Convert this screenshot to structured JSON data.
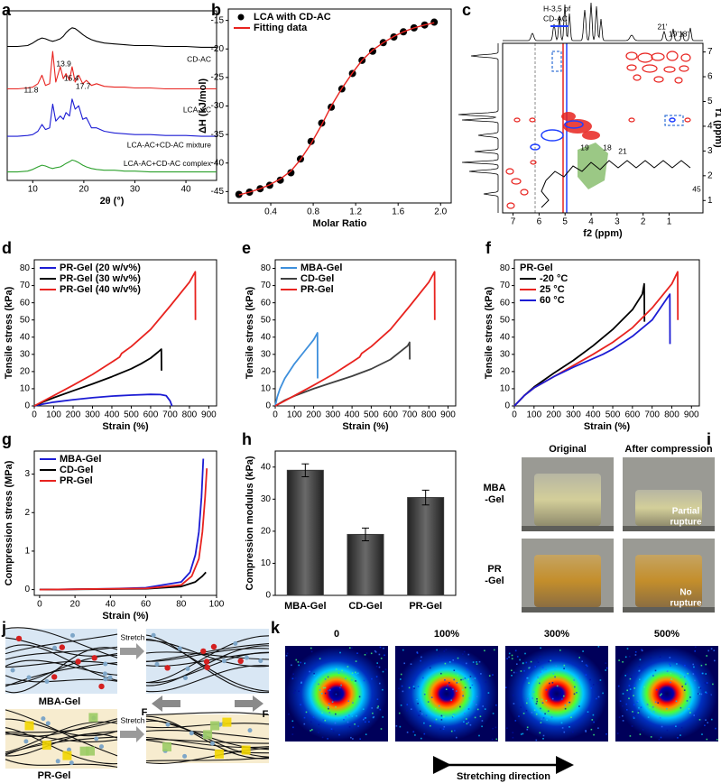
{
  "chart_data": [
    {
      "panel": "a",
      "type": "line",
      "x_label": "2θ (°)",
      "xlim": [
        5,
        46
      ],
      "xticks": [
        10,
        20,
        30,
        40
      ],
      "ylim": [
        0,
        100
      ],
      "x": [
        5,
        7,
        9,
        10,
        11,
        11.8,
        12.5,
        13.3,
        13.9,
        14.5,
        15.4,
        16,
        16.5,
        17.2,
        17.7,
        18.3,
        19,
        19.8,
        20.5,
        21.5,
        22.5,
        24,
        26,
        28,
        30,
        33,
        36,
        40,
        43,
        46
      ],
      "series": [
        {
          "name": "CD-AC",
          "color": "#000000",
          "values": [
            79,
            79,
            79.5,
            81,
            83,
            84,
            83.5,
            82.5,
            82,
            82.5,
            83.5,
            85,
            87,
            89,
            90,
            89.5,
            88,
            86,
            84.5,
            83,
            82,
            81,
            80.5,
            80,
            79.5,
            79.5,
            79,
            79,
            78.5,
            78.5
          ]
        },
        {
          "name": "LCA-AC",
          "color": "#e8231f",
          "values": [
            54,
            54,
            54.5,
            55,
            57,
            62,
            56,
            57,
            76,
            58,
            67,
            60,
            63,
            59,
            67,
            58,
            62,
            57,
            59,
            56,
            57,
            55.5,
            55,
            55,
            54.5,
            54.5,
            54,
            54,
            54,
            54
          ]
        },
        {
          "name": "LCA-AC+CD-AC mixture",
          "color": "#1c1cd4",
          "values": [
            26,
            26,
            26.5,
            27,
            29,
            33,
            30,
            31,
            45,
            35,
            38,
            36,
            40,
            38,
            48,
            42,
            44,
            36,
            37,
            31,
            31,
            29,
            28,
            27.5,
            27,
            27,
            26.5,
            26.5,
            26,
            26
          ]
        },
        {
          "name": "LCA-AC+CD-AC complex",
          "color": "#2ca02c",
          "values": [
            5,
            5,
            5.5,
            6.5,
            8,
            9,
            8.5,
            7.5,
            7,
            7.5,
            8,
            9,
            10,
            11,
            12,
            11.5,
            10.5,
            9,
            8,
            7,
            6.5,
            6,
            6,
            5.5,
            5.5,
            5,
            5,
            5,
            5,
            5
          ]
        }
      ],
      "peak_labels": [
        11.8,
        13.9,
        15.4,
        17.7
      ]
    },
    {
      "panel": "b",
      "type": "scatter",
      "x_label": "Molar Ratio",
      "y_label": "ΔH (kJ/mol)",
      "xlim": [
        0,
        2.1
      ],
      "xticks": [
        0.4,
        0.8,
        1.2,
        1.6,
        {
          "value": 2,
          "label": "2.0"
        }
      ],
      "ylim": [
        -47,
        -13
      ],
      "yticks": [
        -45,
        -40,
        -35,
        -30,
        -25,
        -20,
        -15
      ],
      "legend": "upper left",
      "series": [
        {
          "name": "LCA with CD-AC",
          "color": "#000000",
          "style": "points",
          "x": [
            0.1,
            0.2,
            0.3,
            0.39,
            0.49,
            0.59,
            0.68,
            0.78,
            0.88,
            0.97,
            1.07,
            1.17,
            1.26,
            1.36,
            1.46,
            1.56,
            1.65,
            1.75,
            1.85,
            1.94
          ],
          "values": [
            -45.5,
            -45.1,
            -44.5,
            -43.9,
            -43,
            -41.7,
            -39.3,
            -36.2,
            -33,
            -30.2,
            -27,
            -24.3,
            -22,
            -20.4,
            -18.9,
            -17.9,
            -17,
            -16.3,
            -15.8,
            -15.3
          ]
        },
        {
          "name": "Fitting data",
          "color": "#e8231f",
          "style": "line",
          "x": [
            0.1,
            0.2,
            0.3,
            0.39,
            0.49,
            0.59,
            0.68,
            0.78,
            0.88,
            0.97,
            1.07,
            1.17,
            1.26,
            1.36,
            1.46,
            1.56,
            1.65,
            1.75,
            1.85,
            1.94
          ],
          "values": [
            -45.6,
            -45.1,
            -44.5,
            -43.8,
            -42.8,
            -41.4,
            -39.4,
            -36.6,
            -33.3,
            -30,
            -26.9,
            -24.2,
            -22,
            -20.2,
            -18.9,
            -17.8,
            -17,
            -16.3,
            -15.8,
            -15.4
          ]
        }
      ]
    },
    {
      "panel": "c",
      "type": "nmr2d",
      "x_label": "f2 (ppm)",
      "y_label": "f1 (ppm)",
      "xlim": [
        7.4,
        -0.3
      ],
      "xticks": [
        7,
        6,
        5,
        4,
        3,
        2,
        1
      ],
      "ylim": [
        0.5,
        7.35
      ],
      "yticks": [
        1,
        2,
        3,
        4,
        5,
        6,
        7
      ],
      "annotations": [
        "H-3,5 of",
        "CD-AC",
        "21'",
        "19'18'"
      ],
      "structure_labels": [
        "19",
        "18",
        "21",
        "45"
      ]
    },
    {
      "panel": "d",
      "type": "line",
      "x_label": "Strain (%)",
      "y_label": "Tensile stress (kPa)",
      "xlim": [
        0,
        940
      ],
      "xticks": [
        0,
        100,
        200,
        300,
        400,
        500,
        600,
        700,
        800,
        900
      ],
      "ylim": [
        0,
        85
      ],
      "yticks": [
        0,
        10,
        20,
        30,
        40,
        50,
        60,
        70,
        80
      ],
      "legend": "upper left",
      "series": [
        {
          "name": "PR-Gel (20 w/v%)",
          "color": "#1c1cd4",
          "x": [
            0,
            50,
            100,
            200,
            300,
            400,
            500,
            600,
            650,
            680,
            700,
            710
          ],
          "values": [
            0,
            1.2,
            2.2,
            3.6,
            4.8,
            5.7,
            6.3,
            6.7,
            6.6,
            6,
            3,
            0
          ]
        },
        {
          "name": "PR-Gel (30 w/v%)",
          "color": "#000000",
          "x": [
            0,
            50,
            100,
            200,
            300,
            400,
            450,
            500,
            550,
            600,
            640,
            655,
            656
          ],
          "values": [
            0,
            2.5,
            4.8,
            8.8,
            12.8,
            17,
            19.3,
            21.6,
            24.5,
            27.8,
            31.5,
            33,
            20.5
          ]
        },
        {
          "name": "PR-Gel (40 w/v%)",
          "color": "#e8231f",
          "x": [
            0,
            50,
            100,
            200,
            300,
            400,
            440,
            450,
            500,
            600,
            700,
            800,
            830,
            831
          ],
          "values": [
            0,
            3,
            6,
            12,
            18.3,
            25.5,
            28.5,
            30.5,
            34.5,
            44.5,
            58,
            72,
            78,
            50
          ]
        }
      ]
    },
    {
      "panel": "e",
      "type": "line",
      "x_label": "Strain (%)",
      "y_label": "Tensile stress (kPa)",
      "xlim": [
        0,
        940
      ],
      "xticks": [
        0,
        100,
        200,
        300,
        400,
        500,
        600,
        700,
        800,
        900
      ],
      "ylim": [
        0,
        85
      ],
      "yticks": [
        0,
        10,
        20,
        30,
        40,
        50,
        60,
        70,
        80
      ],
      "legend": "upper left",
      "series": [
        {
          "name": "MBA-Gel",
          "color": "#3d8fdc",
          "x": [
            0,
            10,
            25,
            50,
            100,
            150,
            200,
            220,
            221
          ],
          "values": [
            0,
            5,
            10,
            16,
            24.5,
            31.5,
            38.5,
            42.5,
            16
          ]
        },
        {
          "name": "CD-Gel",
          "color": "#404040",
          "x": [
            0,
            50,
            100,
            200,
            300,
            400,
            500,
            600,
            690,
            700,
            701
          ],
          "values": [
            0,
            3.3,
            5.8,
            10,
            13.7,
            17.3,
            21.5,
            27,
            35,
            37,
            27
          ]
        },
        {
          "name": "PR-Gel",
          "color": "#e8231f",
          "x": [
            0,
            50,
            100,
            200,
            300,
            400,
            440,
            450,
            500,
            600,
            700,
            800,
            830,
            831
          ],
          "values": [
            0,
            3,
            6,
            12,
            18.3,
            25.5,
            28.5,
            30.5,
            34.5,
            44.5,
            58,
            72,
            78,
            50
          ]
        }
      ]
    },
    {
      "panel": "f",
      "type": "line",
      "x_label": "Strain (%)",
      "y_label": "Tensile stress (kPa)",
      "xlim": [
        0,
        940
      ],
      "xticks": [
        0,
        100,
        200,
        300,
        400,
        500,
        600,
        700,
        800,
        900
      ],
      "ylim": [
        0,
        85
      ],
      "yticks": [
        0,
        10,
        20,
        30,
        40,
        50,
        60,
        70,
        80
      ],
      "legend": "upper left",
      "legend_title": "PR-Gel",
      "series": [
        {
          "name": "-20 °C",
          "color": "#000000",
          "x": [
            0,
            50,
            100,
            200,
            300,
            400,
            500,
            600,
            650,
            660,
            661
          ],
          "values": [
            0,
            6,
            11,
            19,
            26.5,
            35,
            44.5,
            56,
            65,
            71,
            49
          ]
        },
        {
          "name": "25 °C",
          "color": "#e8231f",
          "x": [
            0,
            50,
            100,
            200,
            300,
            400,
            500,
            600,
            700,
            800,
            830,
            831
          ],
          "values": [
            0,
            6,
            10.5,
            17,
            23.5,
            30,
            37,
            45.5,
            57,
            71,
            78,
            50
          ]
        },
        {
          "name": "60 °C",
          "color": "#1c1cd4",
          "x": [
            0,
            50,
            100,
            200,
            300,
            400,
            450,
            500,
            600,
            700,
            790,
            791
          ],
          "values": [
            0,
            6,
            10.5,
            17,
            22.5,
            27.5,
            30,
            33,
            40.5,
            50,
            65,
            36
          ]
        }
      ]
    },
    {
      "panel": "g",
      "type": "line",
      "x_label": "Strain (%)",
      "y_label": "Compression stress (MPa)",
      "xlim": [
        -3,
        100
      ],
      "xticks": [
        0,
        20,
        40,
        60,
        80,
        100
      ],
      "ylim": [
        -0.15,
        3.6
      ],
      "yticks": [
        0,
        1,
        2,
        3
      ],
      "legend": "upper left",
      "series": [
        {
          "name": "MBA-Gel",
          "color": "#1c1cd4",
          "x": [
            0,
            40,
            60,
            80,
            85,
            88,
            90,
            91.5,
            92.5
          ],
          "values": [
            0,
            0.02,
            0.05,
            0.2,
            0.45,
            0.9,
            1.5,
            2.4,
            3.4
          ]
        },
        {
          "name": "CD-Gel",
          "color": "#000000",
          "x": [
            0,
            60,
            80,
            88,
            92,
            94
          ],
          "values": [
            0,
            0.02,
            0.08,
            0.2,
            0.35,
            0.45
          ]
        },
        {
          "name": "PR-Gel",
          "color": "#e8231f",
          "x": [
            0,
            60,
            80,
            86,
            90,
            92,
            93.5,
            94.5
          ],
          "values": [
            0,
            0.03,
            0.12,
            0.35,
            0.8,
            1.5,
            2.4,
            3.15
          ]
        }
      ]
    },
    {
      "panel": "h",
      "type": "bar",
      "y_label": "Compression modulus (kPa)",
      "categories": [
        "MBA-Gel",
        "CD-Gel",
        "PR-Gel"
      ],
      "values": [
        39,
        19,
        30.5
      ],
      "errors": [
        2,
        2,
        2.3
      ],
      "color": "#3a3a3a",
      "ylim": [
        0,
        45
      ],
      "yticks": [
        0,
        10,
        20,
        30,
        40
      ]
    }
  ],
  "panel_i": {
    "panel": "i",
    "columns": [
      "Original",
      "After compression"
    ],
    "rows": [
      [
        "MBA",
        "-Gel"
      ],
      [
        "PR",
        "-Gel"
      ]
    ],
    "notes": [
      [
        "Partial",
        "rupture"
      ],
      [
        "No",
        "rupture"
      ]
    ]
  },
  "panel_j": {
    "panel": "j",
    "arrow_labels": [
      "Stretch",
      "Stretch"
    ],
    "force_labels": [
      "F",
      "F"
    ],
    "gel_labels": [
      "MBA-Gel",
      "PR-Gel"
    ]
  },
  "panel_k": {
    "panel": "k",
    "strains": [
      "0",
      "100%",
      "300%",
      "500%"
    ],
    "direction_label": "Stretching direction"
  }
}
